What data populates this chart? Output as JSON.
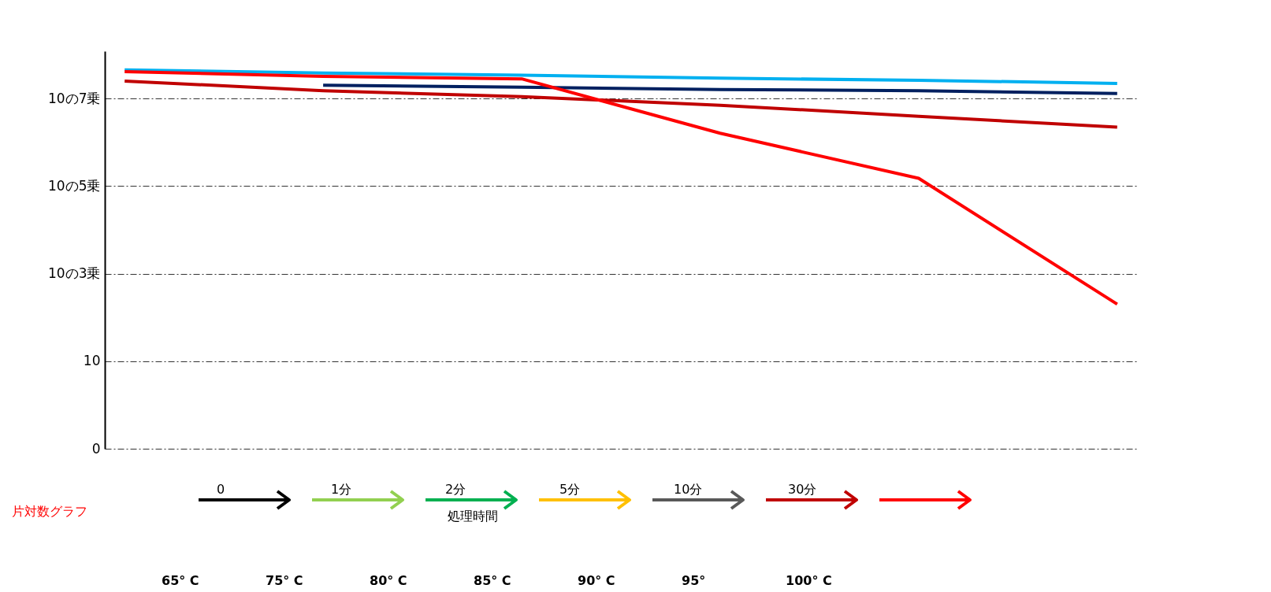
{
  "chart_data": {
    "type": "line",
    "categories": [
      null,
      null,
      null,
      null,
      null,
      null
    ],
    "series": [
      {
        "color": "#00b0f0",
        "values": [
          45000000,
          38000000,
          34000000,
          29000000,
          26000000,
          22000000
        ]
      },
      {
        "color": "#002060",
        "values": [
          null,
          20000000,
          18000000,
          16000000,
          15000000,
          13000000
        ]
      },
      {
        "color": "#c00000",
        "values": [
          25000000,
          15000000,
          11000000,
          7000000,
          3900000,
          2200000
        ]
      },
      {
        "color": "#ff0000",
        "values": [
          41000000,
          32000000,
          28000000,
          1600000,
          150000,
          200
        ]
      }
    ],
    "log": "y",
    "ylim": [
      0.1,
      120000000
    ],
    "yticks": [
      {
        "value": 0.1,
        "label": "0"
      },
      10,
      {
        "value": 1000,
        "label": "10の3乗"
      },
      {
        "value": 100000,
        "label": "10の5乗"
      },
      {
        "value": 10000000,
        "label": "10の7乗"
      }
    ],
    "grid": "y",
    "line_style": "solid",
    "tick_labels": "y",
    "annotations": [
      "0",
      "1分",
      "2分",
      "5分",
      "10分",
      "30分",
      "処理時間",
      "片対数グラフ",
      "65° C",
      "75° C",
      "80° C",
      "85° C",
      "90° C",
      "95°",
      "100° C"
    ]
  }
}
